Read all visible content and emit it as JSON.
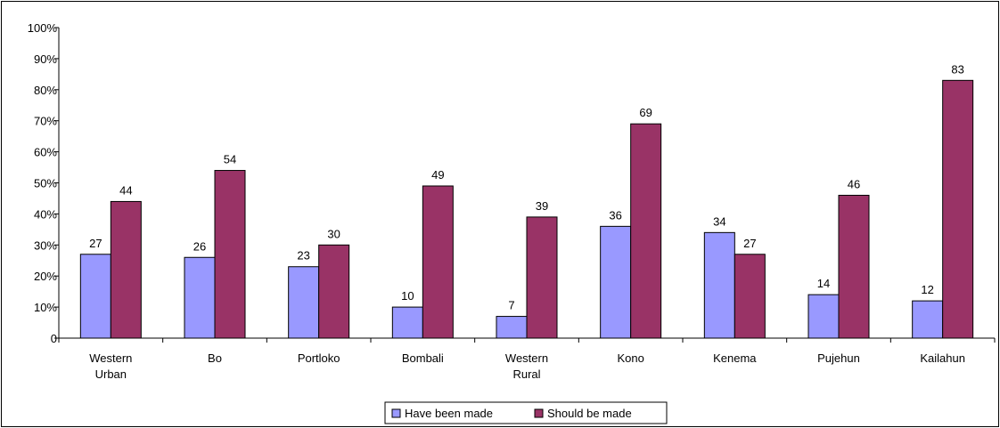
{
  "chart_data": {
    "type": "bar",
    "categories": [
      [
        "Western",
        "Urban"
      ],
      [
        "Bo"
      ],
      [
        "Portloko"
      ],
      [
        "Bombali"
      ],
      [
        "Western",
        "Rural"
      ],
      [
        "Kono"
      ],
      [
        "Kenema"
      ],
      [
        "Pujehun"
      ],
      [
        "Kailahun"
      ]
    ],
    "series": [
      {
        "name": "Have been made",
        "color": "#9999ff",
        "values": [
          27,
          26,
          23,
          10,
          7,
          36,
          34,
          14,
          12
        ]
      },
      {
        "name": "Should be made",
        "color": "#993366",
        "values": [
          44,
          54,
          30,
          49,
          39,
          69,
          27,
          46,
          83
        ]
      }
    ],
    "yticks": [
      "0",
      "10%",
      "20%",
      "30%",
      "40%",
      "50%",
      "60%",
      "70%",
      "80%",
      "90%",
      "100%"
    ],
    "ylim": [
      0,
      100
    ],
    "grid": false,
    "legend_position": "bottom-center",
    "title": "",
    "xlabel": "",
    "ylabel": ""
  }
}
